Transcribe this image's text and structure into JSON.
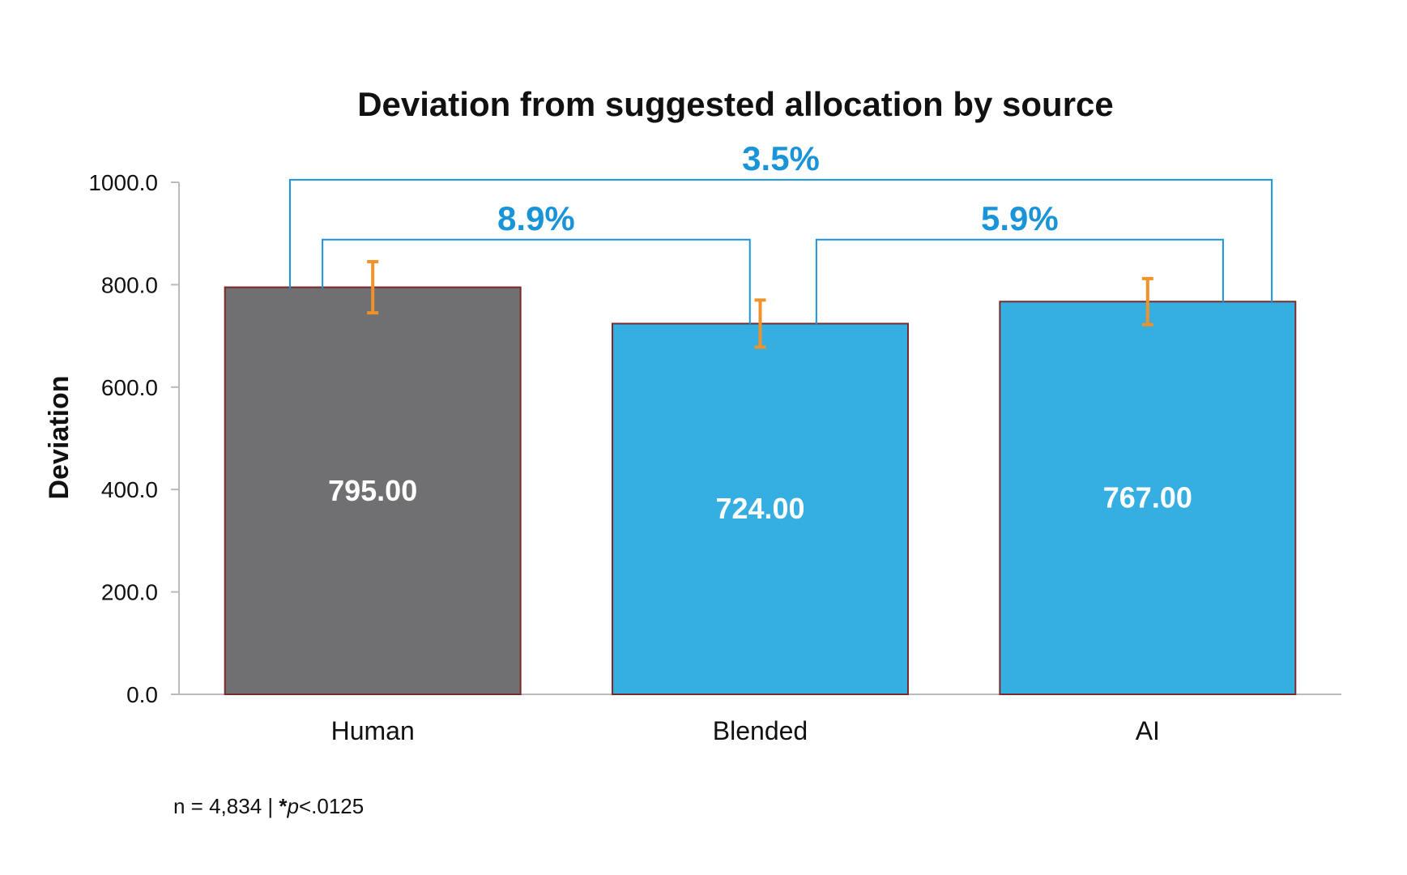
{
  "chart_data": {
    "type": "bar",
    "title": "Deviation from suggested allocation by source",
    "ylabel": "Deviation",
    "xlabel": "",
    "ylim": [
      0,
      1000
    ],
    "yticks": [
      "0.0",
      "200.0",
      "400.0",
      "600.0",
      "800.0",
      "1000.0"
    ],
    "categories": [
      "Human",
      "Blended",
      "AI"
    ],
    "values": [
      795,
      724,
      767
    ],
    "data_labels": [
      "795.00",
      "724.00",
      "767.00"
    ],
    "error_bars": [
      {
        "low": 745,
        "high": 845
      },
      {
        "low": 678,
        "high": 770
      },
      {
        "low": 722,
        "high": 812
      }
    ],
    "colors": [
      "#707073",
      "#35aee2",
      "#35aee2"
    ],
    "bar_border_color": "#7a2a2a",
    "error_bar_color": "#f0922b",
    "comparison_color": "#1a94d8",
    "comparisons": [
      {
        "from": "Human",
        "to": "AI",
        "label": "3.5%"
      },
      {
        "from": "Human",
        "to": "Blended",
        "label": "8.9%"
      },
      {
        "from": "Blended",
        "to": "AI",
        "label": "5.9%"
      }
    ],
    "grid": false,
    "legend": "none"
  },
  "footnote": {
    "n_text": "n = 4,834 | ",
    "star": "*",
    "p": "p",
    "threshold": "<.0125"
  }
}
